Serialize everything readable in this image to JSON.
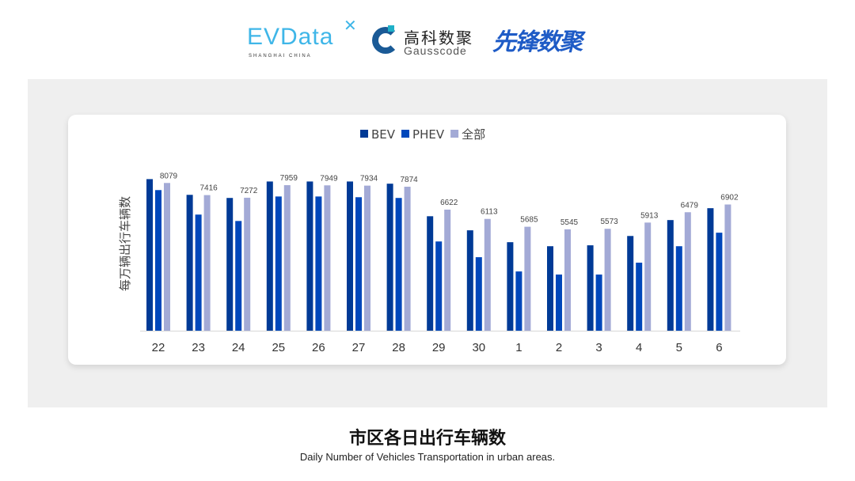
{
  "logos": {
    "evdata": {
      "text": "EVData",
      "sub": "SHANGHAI CHINA"
    },
    "gausscode": {
      "cn": "高科数聚",
      "en": "Gausscode"
    },
    "xianfeng": {
      "text": "先锋数聚"
    }
  },
  "caption": {
    "title": "市区各日出行车辆数",
    "subtitle": "Daily Number of Vehicles Transportation in urban areas."
  },
  "chart_data": {
    "type": "bar",
    "title": "",
    "xlabel": "",
    "ylabel": "每万辆出行车辆数",
    "ylim": [
      0,
      9000
    ],
    "grid": false,
    "legend_position": "top",
    "categories": [
      "22",
      "23",
      "24",
      "25",
      "26",
      "27",
      "28",
      "29",
      "30",
      "1",
      "2",
      "3",
      "4",
      "5",
      "6"
    ],
    "series": [
      {
        "name": "BEV",
        "color": "#003a96",
        "values": [
          8290,
          7430,
          7260,
          8160,
          8160,
          8160,
          8040,
          6260,
          5490,
          4840,
          4620,
          4670,
          5180,
          6050,
          6700
        ]
      },
      {
        "name": "PHEV",
        "color": "#0047bb",
        "values": [
          7690,
          6350,
          6000,
          7340,
          7340,
          7300,
          7260,
          4880,
          4020,
          3240,
          3070,
          3070,
          3720,
          4620,
          5360
        ]
      },
      {
        "name": "全部",
        "color": "#a3aad6",
        "values": [
          8079,
          7416,
          7272,
          7959,
          7949,
          7934,
          7874,
          6622,
          6113,
          5685,
          5545,
          5573,
          5913,
          6479,
          6902
        ],
        "data_labels": [
          "8079",
          "7416",
          "7272",
          "7959",
          "7949",
          "7934",
          "7874",
          "6622",
          "6113",
          "5685",
          "5545",
          "5573",
          "5913",
          "6479",
          "6902"
        ]
      }
    ]
  }
}
